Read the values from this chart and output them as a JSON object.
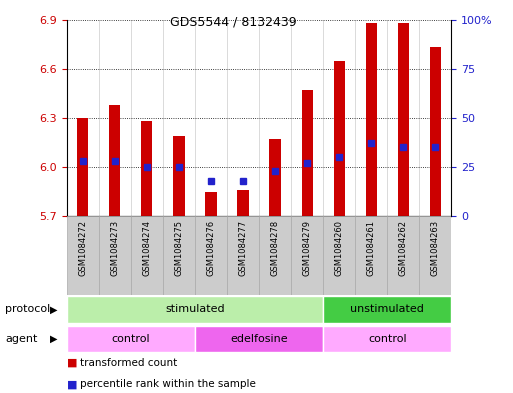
{
  "title": "GDS5544 / 8132439",
  "samples": [
    "GSM1084272",
    "GSM1084273",
    "GSM1084274",
    "GSM1084275",
    "GSM1084276",
    "GSM1084277",
    "GSM1084278",
    "GSM1084279",
    "GSM1084260",
    "GSM1084261",
    "GSM1084262",
    "GSM1084263"
  ],
  "bar_tops": [
    6.3,
    6.38,
    6.28,
    6.19,
    5.85,
    5.86,
    6.17,
    6.47,
    6.65,
    6.88,
    6.88,
    6.73
  ],
  "percentiles": [
    28,
    28,
    25,
    25,
    18,
    18,
    23,
    27,
    30,
    37,
    35,
    35
  ],
  "ymin": 5.7,
  "ymax": 6.9,
  "yticks": [
    5.7,
    6.0,
    6.3,
    6.6,
    6.9
  ],
  "right_yticks": [
    0,
    25,
    50,
    75,
    100
  ],
  "bar_color": "#cc0000",
  "dot_color": "#2222cc",
  "protocol_groups": [
    {
      "label": "stimulated",
      "start": 0,
      "end": 8,
      "color": "#bbeeaa"
    },
    {
      "label": "unstimulated",
      "start": 8,
      "end": 12,
      "color": "#44cc44"
    }
  ],
  "agent_groups": [
    {
      "label": "control",
      "start": 0,
      "end": 4,
      "color": "#ffaaff"
    },
    {
      "label": "edelfosine",
      "start": 4,
      "end": 8,
      "color": "#ee66ee"
    },
    {
      "label": "control",
      "start": 8,
      "end": 12,
      "color": "#ffaaff"
    }
  ],
  "protocol_label": "protocol",
  "agent_label": "agent",
  "left_axis_color": "#cc0000",
  "right_axis_color": "#2222cc",
  "sample_box_color": "#cccccc",
  "sample_box_edge": "#aaaaaa"
}
